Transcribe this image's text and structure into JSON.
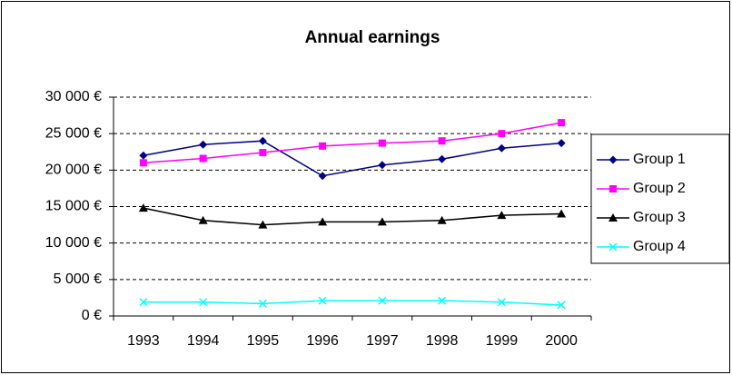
{
  "chart_data": {
    "type": "line",
    "title": "Annual earnings",
    "categories": [
      "1993",
      "1994",
      "1995",
      "1996",
      "1997",
      "1998",
      "1999",
      "2000"
    ],
    "series": [
      {
        "name": "Group 1",
        "color": "#000080",
        "marker": "diamond",
        "values": [
          22000,
          23500,
          24000,
          19200,
          20700,
          21500,
          23000,
          23700
        ]
      },
      {
        "name": "Group 2",
        "color": "#ff00ff",
        "marker": "square",
        "values": [
          21000,
          21600,
          22400,
          23300,
          23700,
          24000,
          25000,
          26500
        ]
      },
      {
        "name": "Group 3",
        "color": "#000000",
        "marker": "triangle",
        "values": [
          14800,
          13100,
          12500,
          12900,
          12900,
          13100,
          13800,
          14000
        ]
      },
      {
        "name": "Group 4",
        "color": "#00ffff",
        "marker": "x",
        "values": [
          1900,
          1900,
          1700,
          2100,
          2100,
          2100,
          1900,
          1500
        ]
      }
    ],
    "ylim": [
      0,
      30000
    ],
    "yticks": [
      {
        "value": 0,
        "label": "0 €"
      },
      {
        "value": 5000,
        "label": "5 000 €"
      },
      {
        "value": 10000,
        "label": "10 000 €"
      },
      {
        "value": 15000,
        "label": "15 000 €"
      },
      {
        "value": 20000,
        "label": "20 000 €"
      },
      {
        "value": 25000,
        "label": "25 000 €"
      },
      {
        "value": 30000,
        "label": "30 000 €"
      }
    ],
    "grid": true,
    "legend": "right"
  }
}
